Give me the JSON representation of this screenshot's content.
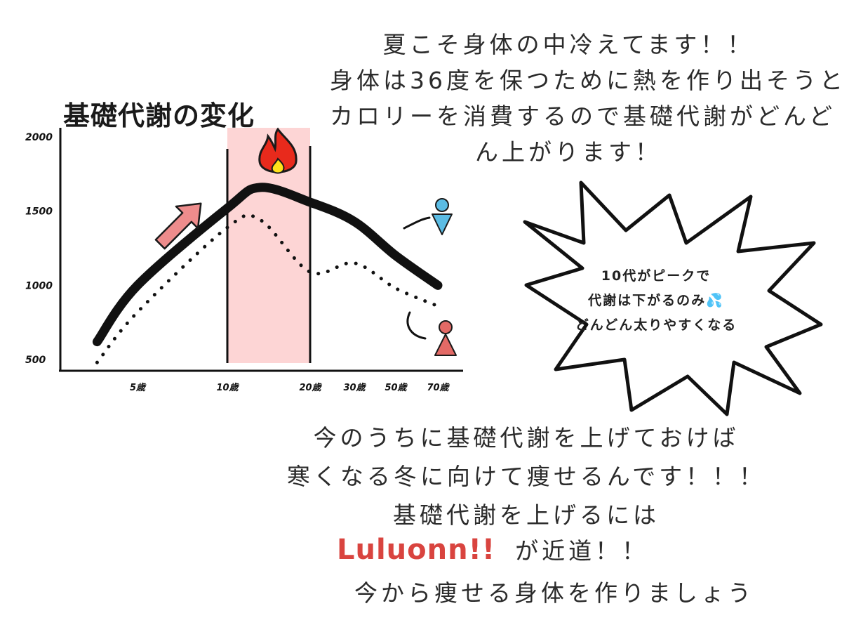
{
  "intro": {
    "lines": [
      "夏こそ身体の中冷えてます！！",
      "身体は36度を保つために熱を作り出そうと",
      "カロリーを消費するので基礎代謝がどんど",
      "ん上がります！"
    ]
  },
  "bubble": {
    "lines": [
      "10代がピークで",
      "代謝は下がるのみ💦",
      "どんどん太りやすくなる"
    ]
  },
  "bottom": {
    "lines": [
      "今のうちに基礎代謝を上げておけば",
      "寒くなる冬に向けて痩せるんです！！！",
      "基礎代謝を上げるには"
    ],
    "brand": "Luluonn!!",
    "brand_suffix": "が近道！！",
    "last": "今から痩せる身体を作りましょう"
  },
  "colors": {
    "brand": "#d9443f",
    "highlight": "#fdd5d5",
    "arrow": "#ee8c8c",
    "person_up": "#5bbce4",
    "person_down": "#e36a66",
    "flame": "#e82a1c"
  },
  "icons": [
    "fire-icon",
    "up-arrow-icon",
    "person-blue-icon",
    "person-red-icon"
  ],
  "chart_data": {
    "type": "line",
    "title": "基礎代謝の変化",
    "categories": [
      "5歳",
      "10歳",
      "20歳",
      "30歳",
      "50歳",
      "70歳"
    ],
    "y_ticks": [
      "2000",
      "1500",
      "1000",
      "500"
    ],
    "ylim": [
      500,
      2000
    ],
    "highlight_range": [
      "10歳",
      "20歳"
    ],
    "series": [
      {
        "style": "solid",
        "x": [
          2,
          5,
          10,
          14,
          20,
          30,
          50,
          70
        ],
        "values": [
          620,
          1000,
          1520,
          1660,
          1560,
          1430,
          1200,
          1000
        ]
      },
      {
        "style": "dotted",
        "x": [
          2,
          5,
          10,
          14,
          20,
          30,
          50,
          70
        ],
        "values": [
          480,
          820,
          1390,
          1440,
          1090,
          1150,
          980,
          860
        ]
      }
    ]
  }
}
